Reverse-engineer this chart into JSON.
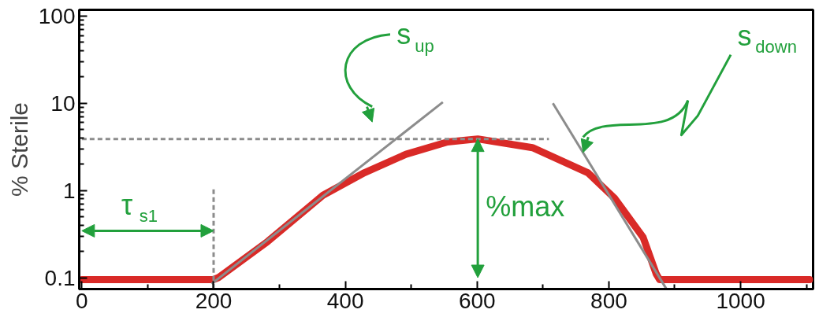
{
  "chart_data": {
    "type": "line",
    "ylabel": "% Sterile",
    "log": "y",
    "grid": false,
    "marker": "none",
    "xlim": [
      -4,
      1110
    ],
    "ylim": [
      0.074,
      118
    ],
    "xticks": [
      0,
      200,
      400,
      600,
      800,
      1000
    ],
    "yticks": [
      0.1,
      1,
      10,
      100
    ],
    "series": [
      {
        "color": "#d92a27",
        "line_style": "solid",
        "x": [
          0,
          200,
          207,
          282,
          366,
          429,
          492,
          555,
          601,
          684,
          768,
          809,
          852,
          872,
          877,
          1105
        ],
        "values": [
          0.095,
          0.095,
          0.1,
          0.26,
          0.88,
          1.6,
          2.6,
          3.6,
          3.9,
          3.1,
          1.6,
          0.81,
          0.29,
          0.11,
          0.095,
          0.095
        ]
      },
      {
        "color": "#8c8c8c",
        "line_style": "solid",
        "x": [
          197,
          548
        ],
        "values": [
          0.085,
          10.3
        ]
      },
      {
        "color": "#8c8c8c",
        "line_style": "solid",
        "x": [
          715,
          887
        ],
        "values": [
          10,
          0.075
        ]
      },
      {
        "color": "#8c8c8c",
        "line_style": "dashed",
        "x": [
          0,
          709
        ],
        "values": [
          3.9,
          3.9
        ]
      },
      {
        "color": "#8c8c8c",
        "line_style": "dashed",
        "x": [
          200,
          200
        ],
        "values": [
          0.075,
          1.1
        ]
      }
    ],
    "annotations": [
      "τ$_{s1}$",
      "%max",
      "s$_{up}$",
      "s$_{down}$"
    ]
  }
}
